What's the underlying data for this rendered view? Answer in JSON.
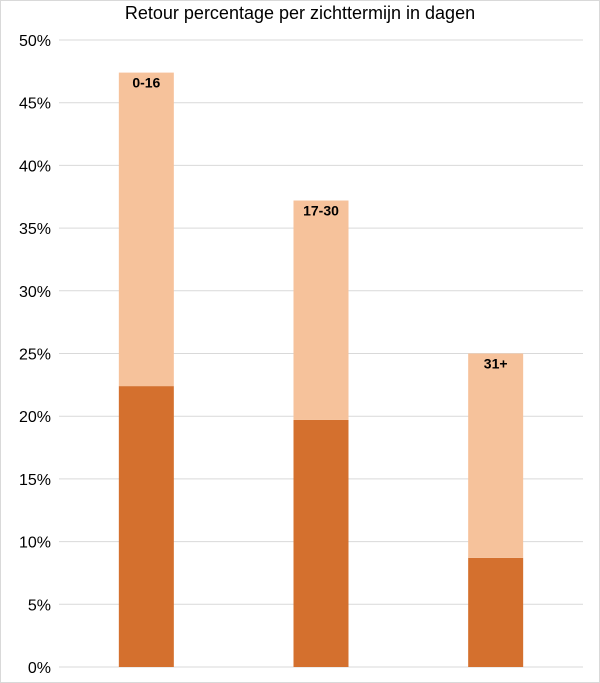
{
  "chart_data": {
    "type": "bar",
    "title": "Retour percentage per zichttermijn in dagen",
    "xlabel": "",
    "ylabel": "",
    "ylim": [
      0,
      50
    ],
    "y_ticks": [
      "0%",
      "5%",
      "10%",
      "15%",
      "20%",
      "25%",
      "30%",
      "35%",
      "40%",
      "45%",
      "50%"
    ],
    "y_tick_values": [
      0,
      5,
      10,
      15,
      20,
      25,
      30,
      35,
      40,
      45,
      50
    ],
    "categories": [
      "0-16",
      "17-30",
      "31+"
    ],
    "stacked": true,
    "series": [
      {
        "values": [
          22.4,
          19.7,
          8.7
        ],
        "color": "#d4702e"
      },
      {
        "values": [
          25.0,
          17.5,
          16.3
        ],
        "color": "#f6c29b"
      }
    ],
    "totals": [
      47.4,
      37.2,
      25.0
    ],
    "grid": true,
    "gridline_color": "#d9d9d9"
  }
}
